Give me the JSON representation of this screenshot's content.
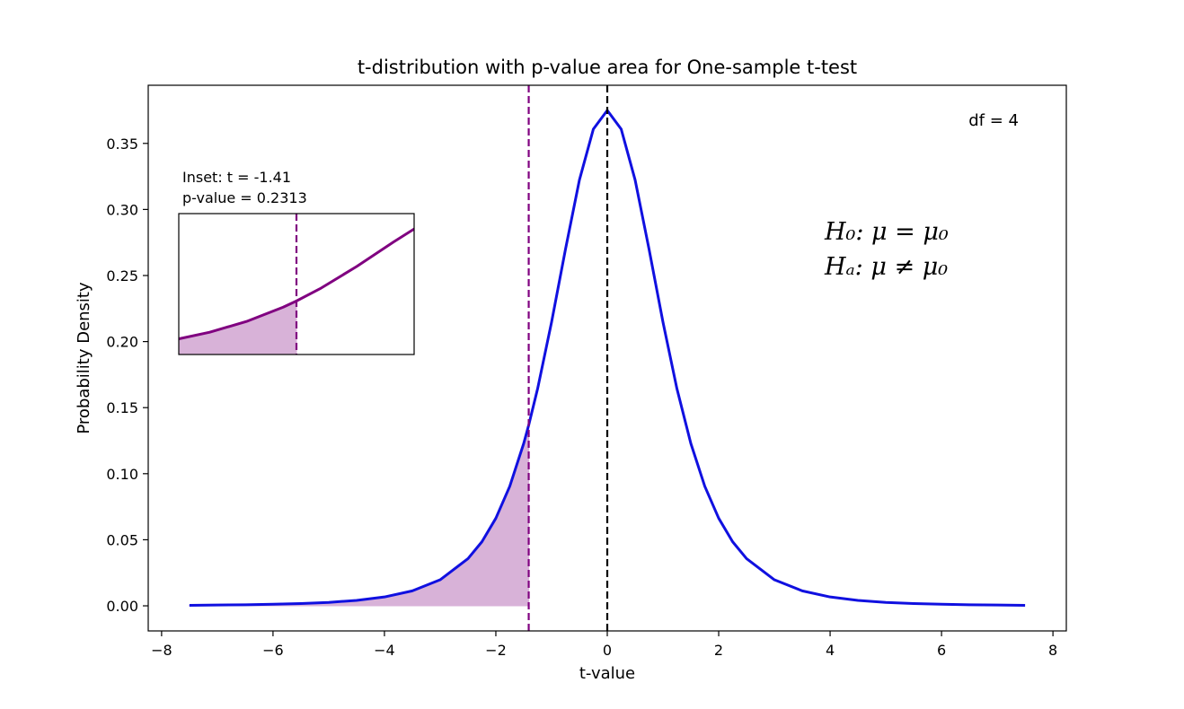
{
  "chart_data": {
    "type": "line",
    "title": "t-distribution with p-value area for One-sample t-test",
    "x_label": "t-value",
    "y_label": "Probability Density",
    "xlim": [
      -8.24,
      8.24
    ],
    "ylim": [
      -0.019,
      0.394
    ],
    "xticks": [
      {
        "value": -8,
        "label": "−8"
      },
      {
        "value": -6,
        "label": "−6"
      },
      {
        "value": -4,
        "label": "−4"
      },
      {
        "value": -2,
        "label": "−2"
      },
      0,
      2,
      4,
      6,
      8
    ],
    "yticks": [
      {
        "value": 0,
        "label": "0.00"
      },
      {
        "value": 0.05,
        "label": "0.05"
      },
      {
        "value": 0.1,
        "label": "0.10"
      },
      {
        "value": 0.15,
        "label": "0.15"
      },
      {
        "value": 0.2,
        "label": "0.20"
      },
      {
        "value": 0.25,
        "label": "0.25"
      },
      {
        "value": 0.3,
        "label": "0.30"
      },
      {
        "value": 0.35,
        "label": "0.35"
      }
    ],
    "series": [
      {
        "color": "#1010e0",
        "x": [
          -7.5,
          -7,
          -6.5,
          -6,
          -5.5,
          -5,
          -4.5,
          -4,
          -3.5,
          -3,
          -2.5,
          -2.25,
          -2,
          -1.75,
          -1.5,
          -1.41,
          -1.25,
          -1,
          -0.75,
          -0.5,
          -0.25,
          0,
          0.25,
          0.5,
          0.75,
          1,
          1.25,
          1.5,
          1.75,
          2,
          2.25,
          2.5,
          3,
          3.5,
          4,
          4.5,
          5,
          5.5,
          6,
          6.5,
          7,
          7.5
        ],
        "values": [
          0.0004,
          0.0006,
          0.0008,
          0.0012,
          0.0017,
          0.0026,
          0.0041,
          0.0067,
          0.0113,
          0.0197,
          0.0357,
          0.0485,
          0.0663,
          0.0905,
          0.1229,
          0.1368,
          0.1644,
          0.2147,
          0.2699,
          0.3223,
          0.3608,
          0.375,
          0.3608,
          0.3223,
          0.2699,
          0.2147,
          0.1644,
          0.1229,
          0.0905,
          0.0663,
          0.0485,
          0.0357,
          0.0197,
          0.0113,
          0.0067,
          0.0041,
          0.0026,
          0.0017,
          0.0012,
          0.0008,
          0.0006,
          0.0004
        ]
      }
    ],
    "shaded_area": {
      "color": "#d8b2d8",
      "x": [
        -7.5,
        -7,
        -6.5,
        -6,
        -5.5,
        -5,
        -4.5,
        -4,
        -3.5,
        -3,
        -2.5,
        -2.25,
        -2,
        -1.75,
        -1.5,
        -1.41
      ],
      "values": [
        0.0004,
        0.0006,
        0.0008,
        0.0012,
        0.0017,
        0.0026,
        0.0041,
        0.0067,
        0.0113,
        0.0197,
        0.0357,
        0.0485,
        0.0663,
        0.0905,
        0.1229,
        0.1368
      ]
    },
    "vlines": [
      {
        "x": -1.41,
        "color": "#800080"
      },
      {
        "x": 0,
        "color": "#000000"
      }
    ],
    "annotations": [
      "df = 4"
    ],
    "hypotheses": [
      "H₀: μ = μ₀",
      "Hₐ: μ ≠ μ₀"
    ],
    "inset": {
      "text": [
        "Inset: t = -1.41",
        "p-value = 0.2313"
      ],
      "xlim": [
        -2.21,
        -0.61
      ],
      "ylim": [
        0.016,
        0.334
      ],
      "line_color": "#800080"
    }
  }
}
